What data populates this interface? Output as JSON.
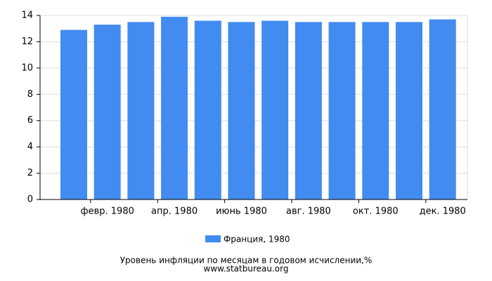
{
  "chart_data": {
    "type": "bar",
    "title": "Уровень инфляции по месяцам в годовом исчислении,%",
    "source": "www.statbureau.org",
    "categories": [
      null,
      "февр. 1980",
      null,
      "апр. 1980",
      null,
      "июнь 1980",
      null,
      "авг. 1980",
      null,
      "окт. 1980",
      null,
      "дек. 1980"
    ],
    "series": [
      {
        "name": "Франция, 1980",
        "color": "#428bf0",
        "values": [
          12.9,
          13.3,
          13.5,
          13.9,
          13.6,
          13.5,
          13.6,
          13.5,
          13.5,
          13.5,
          13.5,
          13.7
        ]
      }
    ],
    "ylim": [
      0,
      14
    ],
    "yticks": [
      0,
      2,
      4,
      6,
      8,
      10,
      12,
      14
    ],
    "grid": true
  }
}
